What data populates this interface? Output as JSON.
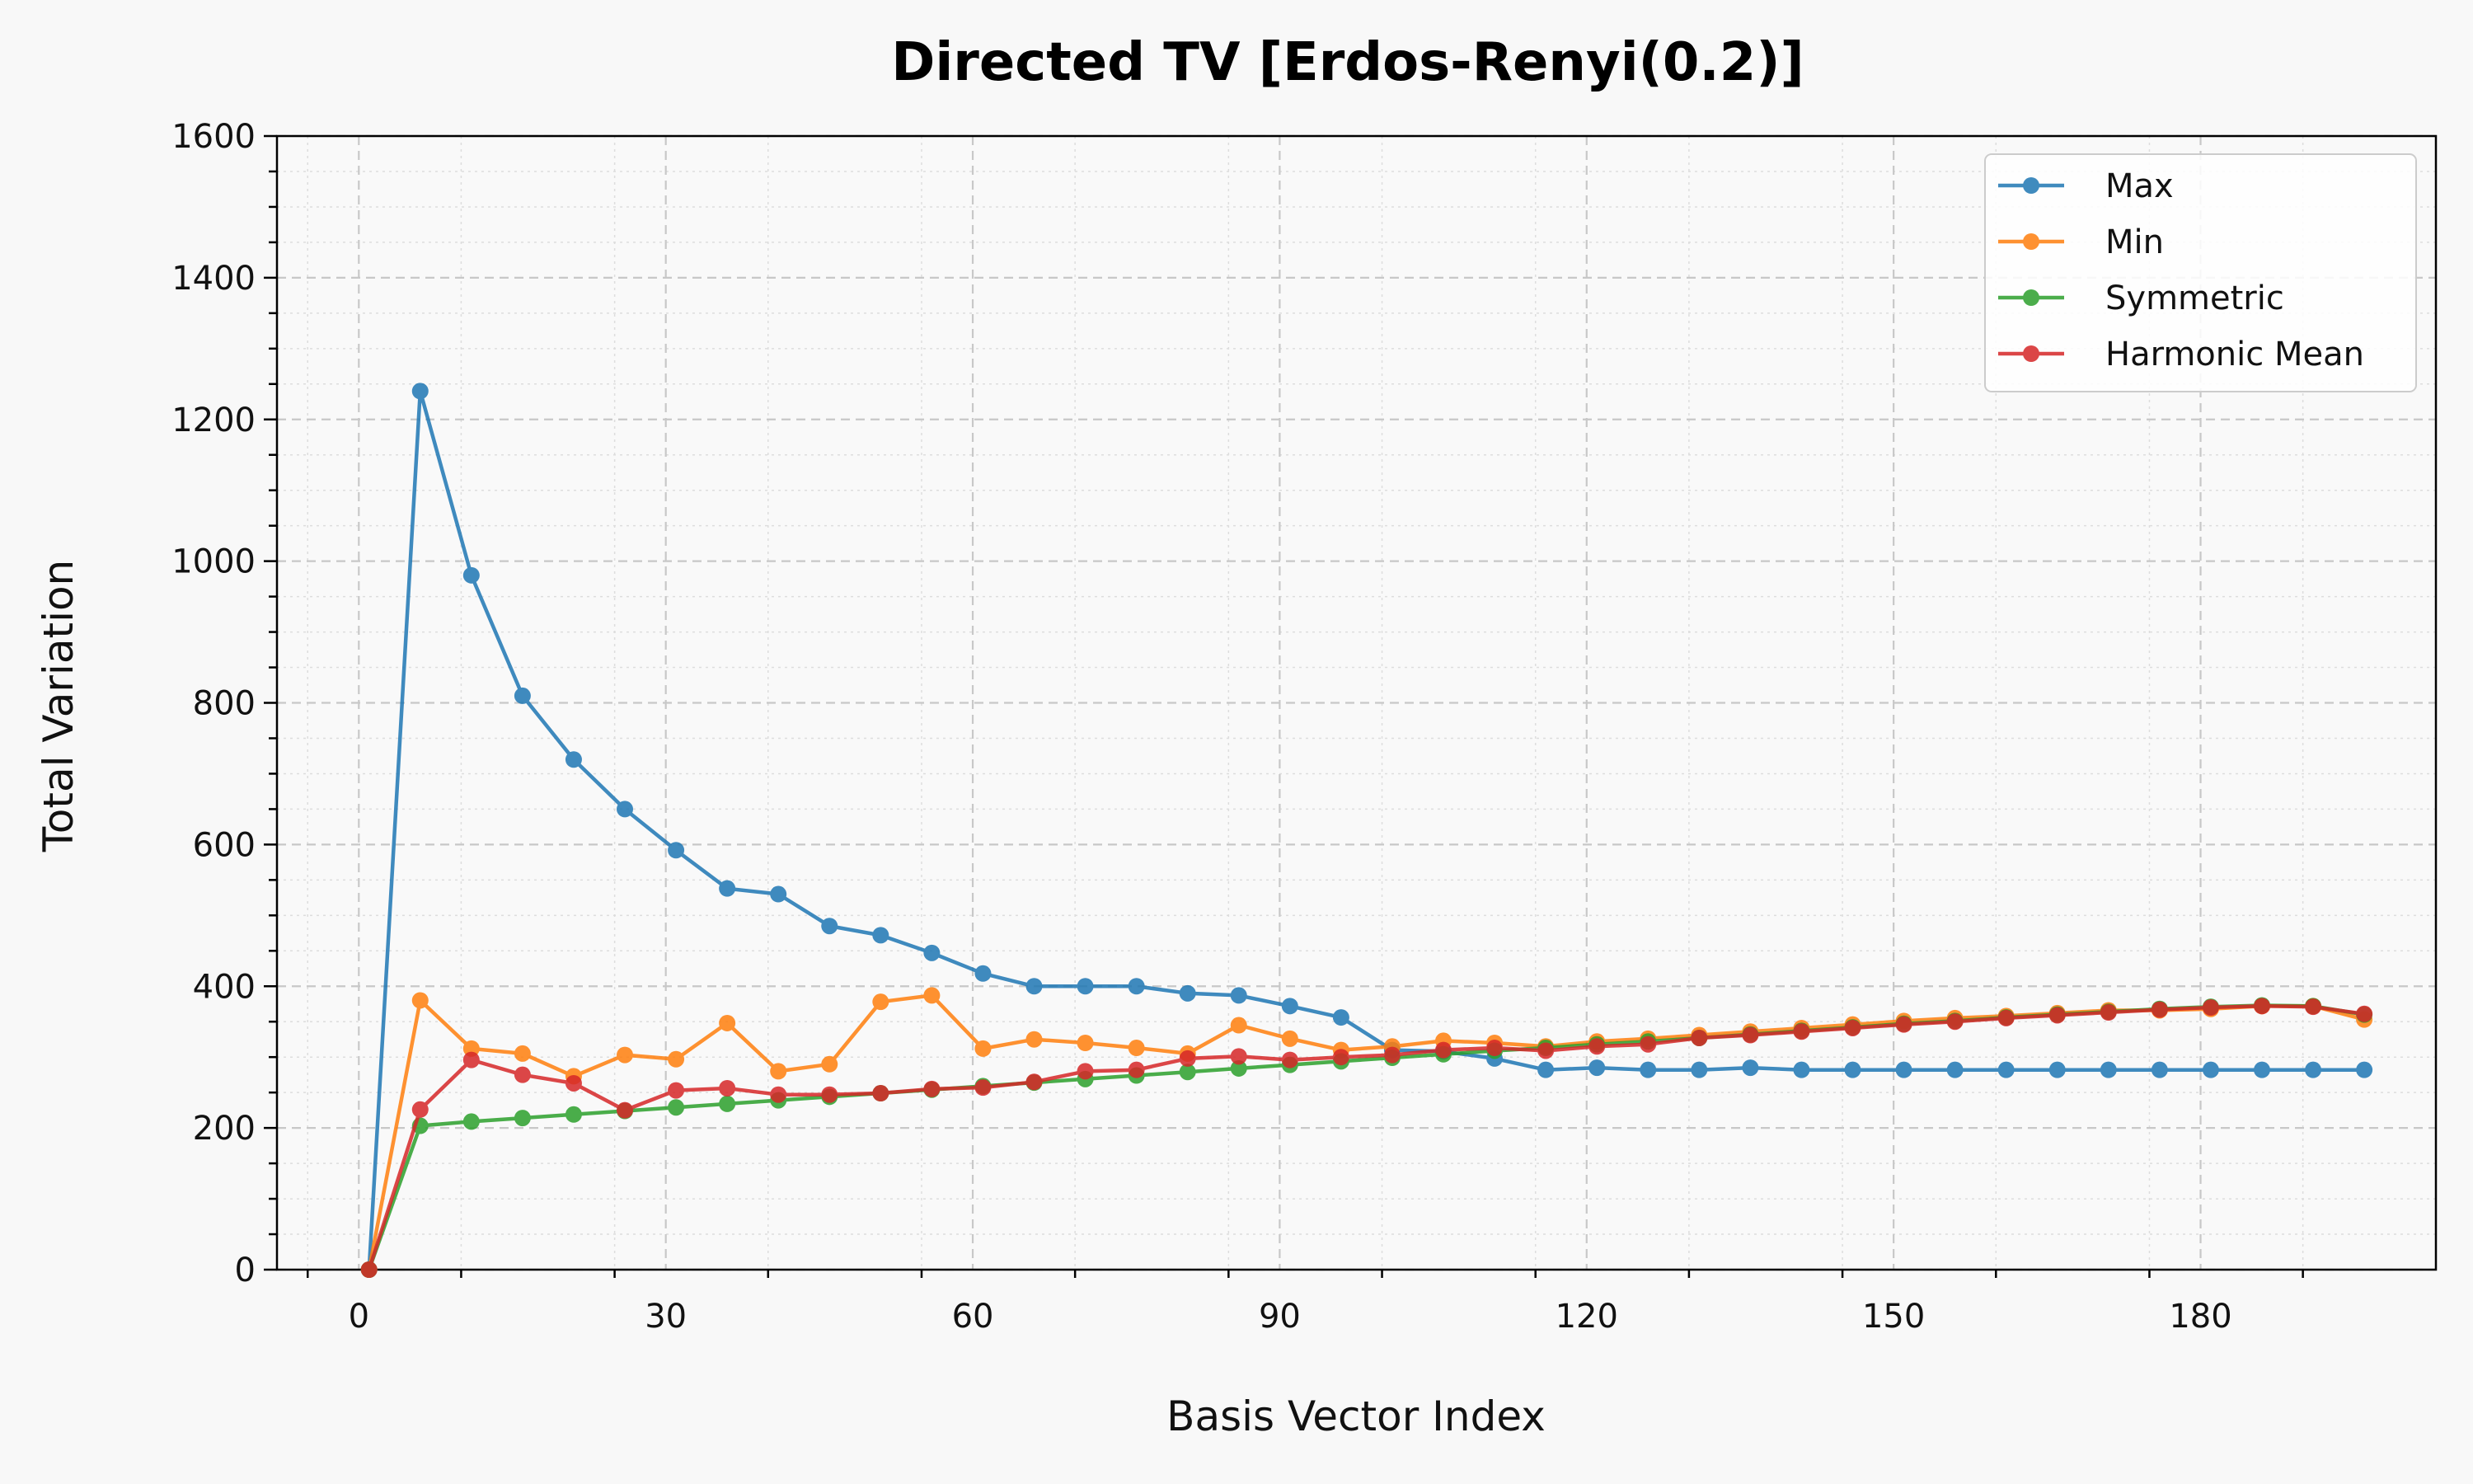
{
  "chart_data": {
    "type": "line",
    "title": "Directed TV [Erdos-Renyi(0.2)]",
    "xlabel": "Basis Vector Index",
    "ylabel": "Total Variation",
    "xlim": [
      -8,
      203
    ],
    "ylim": [
      0,
      1600
    ],
    "xticks": [
      0,
      30,
      60,
      90,
      120,
      150,
      180
    ],
    "yticks": [
      0,
      200,
      400,
      600,
      800,
      1000,
      1200,
      1400,
      1600
    ],
    "grid": true,
    "legend_position": "top-right",
    "x": [
      1,
      6,
      11,
      16,
      21,
      26,
      31,
      36,
      41,
      46,
      51,
      56,
      61,
      66,
      71,
      76,
      81,
      86,
      91,
      96,
      101,
      106,
      111,
      116,
      121,
      126,
      131,
      136,
      141,
      146,
      151,
      156,
      161,
      166,
      171,
      176,
      181,
      186,
      191,
      196
    ],
    "series": [
      {
        "name": "Max",
        "color": "#1f77b4",
        "values": [
          0,
          1240,
          980,
          810,
          720,
          650,
          592,
          538,
          530,
          485,
          472,
          447,
          418,
          400,
          400,
          400,
          390,
          387,
          372,
          356,
          310,
          308,
          298,
          282,
          285,
          282,
          282,
          285,
          282,
          282,
          282,
          282,
          282,
          282,
          282,
          282,
          282,
          282,
          282,
          282
        ]
      },
      {
        "name": "Min",
        "color": "#ff7f0e",
        "values": [
          0,
          380,
          312,
          305,
          273,
          303,
          297,
          348,
          280,
          290,
          378,
          387,
          312,
          325,
          320,
          313,
          305,
          345,
          326,
          310,
          315,
          323,
          320,
          315,
          322,
          326,
          331,
          336,
          341,
          346,
          351,
          355,
          358,
          362,
          366,
          366,
          368,
          372,
          372,
          353
        ]
      },
      {
        "name": "Symmetric",
        "color": "#2ca02c",
        "values": [
          0,
          203,
          209,
          214,
          219,
          224,
          229,
          234,
          239,
          244,
          249,
          254,
          259,
          264,
          269,
          274,
          279,
          284,
          289,
          294,
          299,
          304,
          309,
          313,
          318,
          322,
          327,
          332,
          337,
          342,
          347,
          351,
          356,
          360,
          364,
          368,
          371,
          373,
          372,
          360
        ]
      },
      {
        "name": "Harmonic Mean",
        "color": "#d62728",
        "values": [
          0,
          226,
          296,
          275,
          263,
          225,
          253,
          256,
          247,
          247,
          249,
          255,
          257,
          265,
          280,
          282,
          298,
          301,
          296,
          300,
          303,
          310,
          313,
          309,
          315,
          318,
          327,
          331,
          336,
          341,
          346,
          350,
          355,
          359,
          363,
          367,
          370,
          372,
          371,
          361
        ]
      }
    ]
  }
}
